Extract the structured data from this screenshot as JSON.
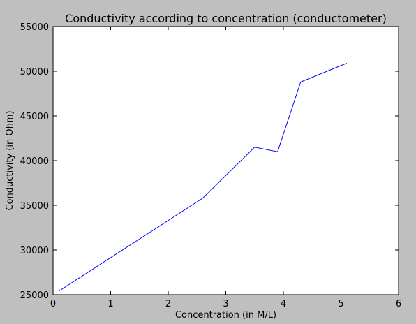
{
  "chart_data": {
    "type": "line",
    "title": "Conductivity according to concentration (conductometer)",
    "xlabel": "Concentration (in M/L)",
    "ylabel": "Conductivity (in Ohm)",
    "xlim": [
      0,
      6
    ],
    "ylim": [
      25000,
      55000
    ],
    "xticks": [
      0,
      1,
      2,
      3,
      4,
      5,
      6
    ],
    "yticks": [
      25000,
      30000,
      35000,
      40000,
      45000,
      50000,
      55000
    ],
    "grid": false,
    "line_color": "#0000ff",
    "background_color": "#bfbfbf",
    "plot_background": "#ffffff",
    "series": [
      {
        "x": [
          0.1,
          2.6,
          3.5,
          3.9,
          4.3,
          5.1
        ],
        "y": [
          25400,
          35800,
          41500,
          41000,
          48800,
          50900
        ]
      }
    ]
  }
}
